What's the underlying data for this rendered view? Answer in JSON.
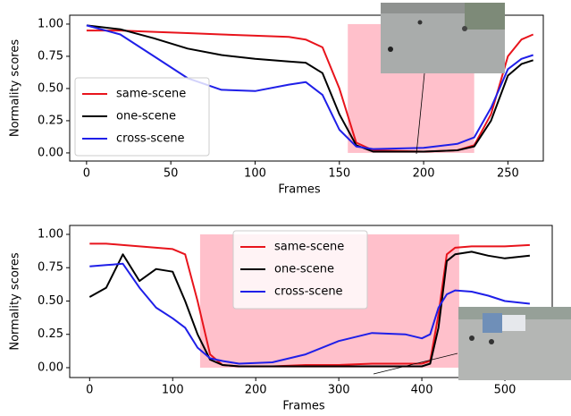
{
  "chart_data": [
    {
      "type": "line",
      "xlabel": "Frames",
      "ylabel": "Normality scores",
      "x": [
        0,
        20,
        40,
        60,
        80,
        100,
        120,
        130,
        140,
        150,
        160,
        170,
        200,
        220,
        230,
        240,
        250,
        258,
        265
      ],
      "series": [
        {
          "name": "same-scene",
          "color": "#e8141c",
          "values": [
            0.95,
            0.95,
            0.94,
            0.93,
            0.92,
            0.91,
            0.9,
            0.88,
            0.82,
            0.5,
            0.08,
            0.02,
            0.01,
            0.02,
            0.06,
            0.3,
            0.75,
            0.88,
            0.92
          ]
        },
        {
          "name": "one-scene",
          "color": "#000000",
          "values": [
            0.99,
            0.96,
            0.89,
            0.81,
            0.76,
            0.73,
            0.71,
            0.7,
            0.62,
            0.3,
            0.06,
            0.01,
            0.01,
            0.02,
            0.05,
            0.25,
            0.6,
            0.69,
            0.72
          ]
        },
        {
          "name": "cross-scene",
          "color": "#1f1fe8",
          "values": [
            0.99,
            0.92,
            0.75,
            0.58,
            0.49,
            0.48,
            0.53,
            0.55,
            0.45,
            0.18,
            0.05,
            0.03,
            0.04,
            0.07,
            0.12,
            0.35,
            0.65,
            0.73,
            0.76
          ]
        }
      ],
      "highlight": {
        "from": 155,
        "to": 230,
        "low": 0,
        "high": 1,
        "color": "#ffc0cb"
      },
      "xlim": [
        -10,
        271
      ],
      "ylim": [
        -0.063,
        1.069
      ],
      "xticks": [
        0,
        50,
        100,
        150,
        200,
        250
      ],
      "yticks": [
        {
          "value": 0,
          "label": "0.00"
        },
        {
          "value": 0.25,
          "label": "0.25"
        },
        {
          "value": 0.5,
          "label": "0.50"
        },
        {
          "value": 0.75,
          "label": "0.75"
        },
        {
          "value": 1,
          "label": "1.00"
        }
      ],
      "legend": "lower left"
    },
    {
      "type": "line",
      "xlabel": "Frames",
      "ylabel": "Normality scores",
      "x": [
        0,
        20,
        40,
        60,
        80,
        100,
        115,
        130,
        145,
        160,
        180,
        220,
        260,
        300,
        340,
        380,
        400,
        410,
        420,
        430,
        440,
        460,
        480,
        500,
        530
      ],
      "series": [
        {
          "name": "same-scene",
          "color": "#e8141c",
          "values": [
            0.93,
            0.93,
            0.92,
            0.91,
            0.9,
            0.89,
            0.85,
            0.5,
            0.1,
            0.02,
            0.01,
            0.01,
            0.02,
            0.02,
            0.03,
            0.03,
            0.03,
            0.05,
            0.4,
            0.85,
            0.9,
            0.91,
            0.91,
            0.91,
            0.92
          ]
        },
        {
          "name": "one-scene",
          "color": "#000000",
          "values": [
            0.53,
            0.6,
            0.85,
            0.65,
            0.74,
            0.72,
            0.5,
            0.25,
            0.06,
            0.02,
            0.01,
            0.01,
            0.01,
            0.01,
            0.01,
            0.01,
            0.01,
            0.03,
            0.3,
            0.8,
            0.85,
            0.87,
            0.84,
            0.82,
            0.84
          ]
        },
        {
          "name": "cross-scene",
          "color": "#1f1fe8",
          "values": [
            0.76,
            0.77,
            0.78,
            0.6,
            0.45,
            0.37,
            0.3,
            0.15,
            0.07,
            0.05,
            0.03,
            0.04,
            0.1,
            0.2,
            0.26,
            0.25,
            0.22,
            0.25,
            0.45,
            0.55,
            0.58,
            0.57,
            0.54,
            0.5,
            0.48
          ]
        }
      ],
      "highlight": {
        "from": 133,
        "to": 445,
        "low": 0,
        "high": 1,
        "color": "#ffc0cb"
      },
      "xlim": [
        -24,
        557
      ],
      "ylim": [
        -0.074,
        1.067
      ],
      "xticks": [
        0,
        100,
        200,
        300,
        400,
        500
      ],
      "yticks": [
        {
          "value": 0,
          "label": "0.00"
        },
        {
          "value": 0.25,
          "label": "0.25"
        },
        {
          "value": 0.5,
          "label": "0.50"
        },
        {
          "value": 0.75,
          "label": "0.75"
        },
        {
          "value": 1,
          "label": "1.00"
        }
      ],
      "legend": "upper center"
    }
  ]
}
